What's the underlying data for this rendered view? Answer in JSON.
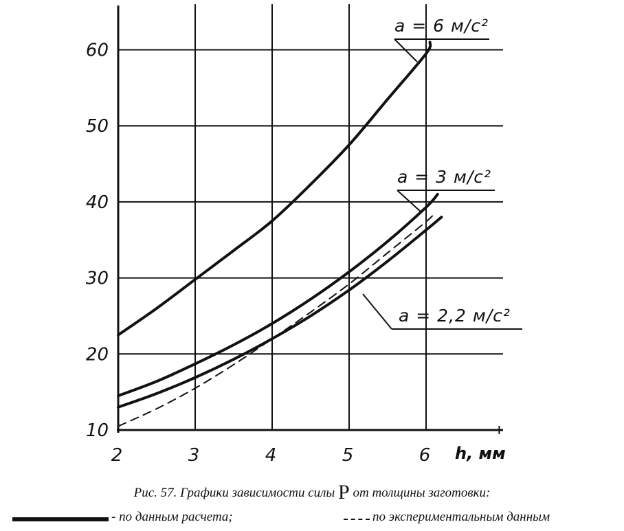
{
  "chart_data": {
    "type": "line",
    "xlabel": "h, мм",
    "ylabel": "",
    "xlim": [
      1.9,
      7.0
    ],
    "ylim": [
      10,
      66
    ],
    "x_ticks": [
      2,
      3,
      4,
      5,
      6
    ],
    "y_ticks": [
      10,
      20,
      30,
      40,
      50,
      60
    ],
    "grid": true,
    "series": [
      {
        "name": "a = 6 м/с²",
        "style": "solid",
        "x": [
          2.0,
          2.5,
          3.0,
          3.5,
          4.0,
          4.5,
          5.0,
          5.5,
          6.0,
          6.05
        ],
        "y": [
          22.5,
          26.0,
          29.8,
          33.6,
          37.5,
          42.3,
          47.5,
          53.5,
          59.5,
          61.0
        ]
      },
      {
        "name": "a = 3 м/с²",
        "style": "solid",
        "x": [
          2.0,
          2.5,
          3.0,
          3.5,
          4.0,
          4.5,
          5.0,
          5.5,
          6.0,
          6.15
        ],
        "y": [
          14.5,
          16.4,
          18.7,
          21.2,
          24.0,
          27.2,
          30.8,
          34.8,
          39.3,
          41.0
        ]
      },
      {
        "name": "a = 2,2 м/с²",
        "style": "solid",
        "x": [
          2.0,
          2.5,
          3.0,
          3.5,
          4.0,
          4.5,
          5.0,
          5.5,
          6.0,
          6.2
        ],
        "y": [
          13.0,
          14.8,
          16.9,
          19.3,
          22.0,
          25.0,
          28.4,
          32.2,
          36.3,
          38.0
        ]
      },
      {
        "name": "",
        "style": "dashed",
        "x": [
          2.0,
          2.5,
          3.0,
          3.5,
          4.0,
          4.5,
          5.0,
          5.5,
          6.0,
          6.1
        ],
        "y": [
          10.5,
          12.8,
          15.5,
          18.6,
          22.0,
          25.5,
          29.2,
          33.3,
          37.4,
          38.4
        ]
      }
    ],
    "annotations": [
      {
        "text": "a = 6 м/с²",
        "points_to": 0
      },
      {
        "text": "a = 3 м/с²",
        "points_to": 1
      },
      {
        "text": "a = 2,2 м/с²",
        "points_to": 2
      }
    ]
  },
  "caption": {
    "prefix": "Рис. 57. Графики зависимости силы ",
    "symbol": "P",
    "suffix": " от толщины заготовки:"
  },
  "legend": {
    "solid_text": "- по данным расчета;",
    "dashed_text": "по экспериментальным данным"
  }
}
